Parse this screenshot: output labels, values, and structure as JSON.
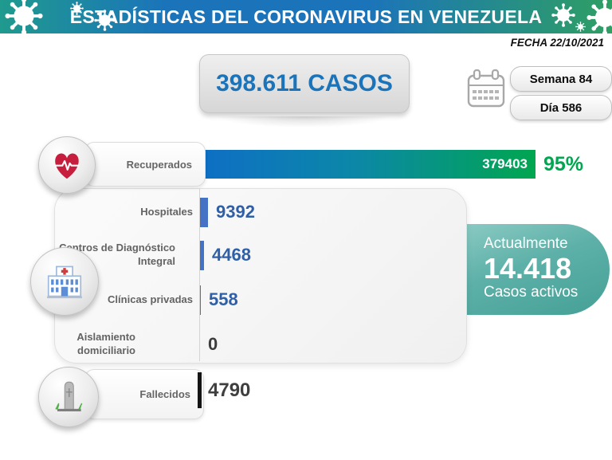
{
  "header": {
    "title": "ESTADÍSTICAS DEL CORONAVIRUS EN VENEZUELA"
  },
  "date_label": "FECHA 22/10/2021",
  "total_box": {
    "label": "398.611 CASOS"
  },
  "period": {
    "week_label": "Semana 84",
    "day_label": "Día 586"
  },
  "recovered": {
    "label": "Recuperados",
    "value": "379403",
    "percent": "95%"
  },
  "breakdown": {
    "rows": [
      {
        "label": "Hospitales",
        "value": "9392"
      },
      {
        "label": "Centros de Diagnóstico Integral",
        "value": "4468"
      },
      {
        "label": "Clínicas privadas",
        "value": "558"
      },
      {
        "label": "Aislamiento domiciliario",
        "value": "0"
      }
    ]
  },
  "active_box": {
    "line1": "Actualmente",
    "value": "14.418",
    "line2": "Casos activos"
  },
  "deaths": {
    "label": "Fallecidos",
    "value": "4790"
  },
  "icons": {
    "decoration": "virus-icon",
    "period": "calendar-icon",
    "recovered": "heart-pulse-icon",
    "breakdown": "hospital-icon",
    "deaths": "tombstone-icon"
  },
  "colors": {
    "header_teal": "#1f9a8e",
    "header_blue": "#1b74ba",
    "header_green": "#2f9f63",
    "total_text_blue": "#1b74ba",
    "bar_gradient_start": "#0e6fc4",
    "bar_gradient_end": "#00a650",
    "percent_green": "#00a650",
    "value_blue": "#2e5fa7",
    "mini_bar_blue": "#4472c4",
    "active_teal": "#5cb0a8",
    "deaths_bar_black": "#151515"
  },
  "chart_data": {
    "type": "bar",
    "orientation": "horizontal",
    "title": "ESTADÍSTICAS DEL CORONAVIRUS EN VENEZUELA",
    "date": "22/10/2021",
    "week": 84,
    "day": 586,
    "total_cases": 398611,
    "active_cases": 14418,
    "recovered_percent": 95,
    "categories": [
      "Recuperados",
      "Hospitales",
      "Centros de Diagnóstico Integral",
      "Clínicas privadas",
      "Aislamiento domiciliario",
      "Fallecidos"
    ],
    "values": [
      379403,
      9392,
      4468,
      558,
      0,
      4790
    ],
    "bar_colors": [
      "blue-to-green-gradient",
      "#4472c4",
      "#4472c4",
      "#4472c4",
      "#4472c4",
      "#151515"
    ],
    "xlim": [
      0,
      379403
    ],
    "grid": false,
    "legend": false
  }
}
